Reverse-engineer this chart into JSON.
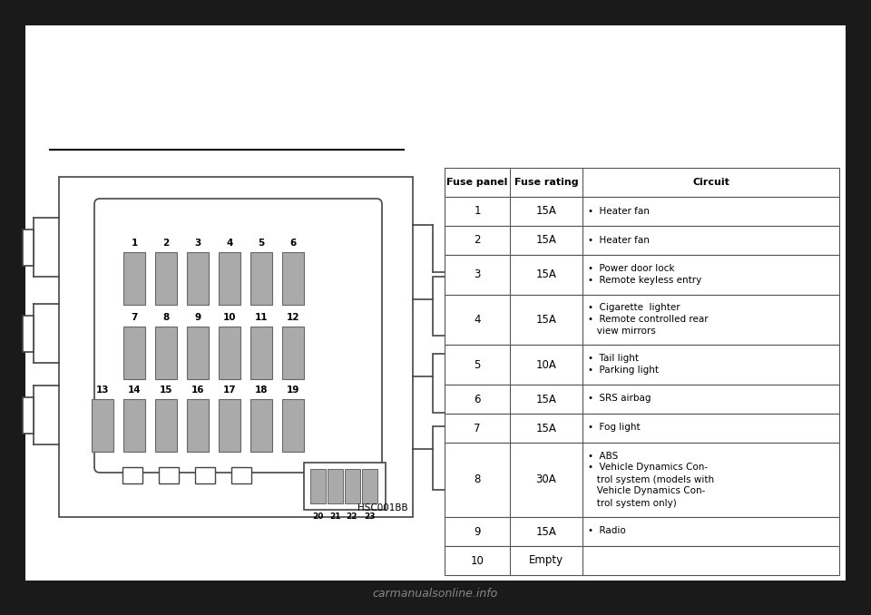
{
  "bg_color": "#1a1a1a",
  "page_bg": "#ffffff",
  "diagram": {
    "fuse_color": "#aaaaaa",
    "hsc_label": "HSC001BB"
  },
  "table": {
    "headers": [
      "Fuse panel",
      "Fuse rating",
      "Circuit"
    ],
    "rows": [
      {
        "panel": "1",
        "rating": "15A",
        "circuit": [
          "•  Heater fan"
        ]
      },
      {
        "panel": "2",
        "rating": "15A",
        "circuit": [
          "•  Heater fan"
        ]
      },
      {
        "panel": "3",
        "rating": "15A",
        "circuit": [
          "•  Power door lock",
          "•  Remote keyless entry"
        ]
      },
      {
        "panel": "4",
        "rating": "15A",
        "circuit": [
          "•  Cigarette  lighter",
          "•  Remote controlled rear",
          "   view mirrors"
        ]
      },
      {
        "panel": "5",
        "rating": "10A",
        "circuit": [
          "•  Tail light",
          "•  Parking light"
        ]
      },
      {
        "panel": "6",
        "rating": "15A",
        "circuit": [
          "•  SRS airbag"
        ]
      },
      {
        "panel": "7",
        "rating": "15A",
        "circuit": [
          "•  Fog light"
        ]
      },
      {
        "panel": "8",
        "rating": "30A",
        "circuit": [
          "•  ABS",
          "•  Vehicle Dynamics Con-",
          "   trol system (models with",
          "   Vehicle Dynamics Con-",
          "   trol system only)"
        ]
      },
      {
        "panel": "9",
        "rating": "15A",
        "circuit": [
          "•  Radio"
        ]
      },
      {
        "panel": "10",
        "rating": "Empty",
        "circuit": []
      }
    ]
  },
  "watermark": "carmanualsonline.info"
}
